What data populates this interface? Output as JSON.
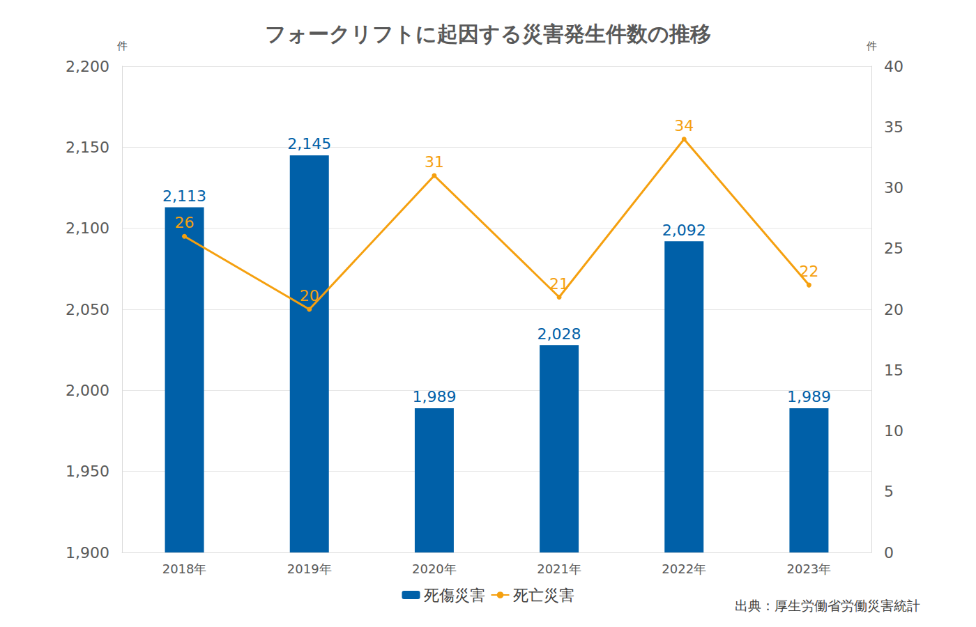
{
  "chart_data": {
    "type": "bar",
    "title": "フォークリフトに起因する災害発生件数の推移",
    "categories": [
      "2018年",
      "2019年",
      "2020年",
      "2021年",
      "2022年",
      "2023年"
    ],
    "series": [
      {
        "name": "死傷災害",
        "type": "bar",
        "color": "#0060a8",
        "values": [
          2113,
          2145,
          1989,
          2028,
          2092,
          1989
        ],
        "value_labels": [
          "2,113",
          "2,145",
          "1,989",
          "2,028",
          "2,092",
          "1,989"
        ]
      },
      {
        "name": "死亡災害",
        "type": "line",
        "axis": "y2",
        "color": "#f5a00f",
        "marker": "circle",
        "values": [
          26,
          20,
          31,
          21,
          34,
          22
        ]
      }
    ],
    "y_label": "件",
    "y2_label": "件",
    "ylim": [
      1900,
      2200
    ],
    "yticks": [
      1900,
      1950,
      2000,
      2050,
      2100,
      2150,
      2200
    ],
    "y2lim": [
      0,
      40
    ],
    "y2ticks": [
      0,
      5,
      10,
      15,
      20,
      25,
      30,
      35,
      40
    ],
    "source": "出典：厚生労働省労働災害統計",
    "grid": true,
    "legend": "bottom",
    "data_labels": true
  }
}
